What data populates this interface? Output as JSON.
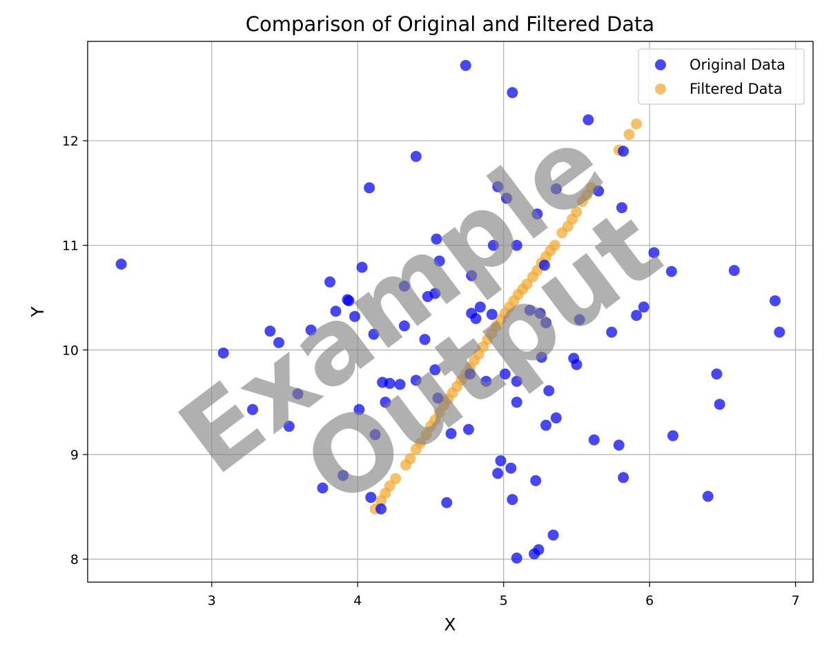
{
  "watermark": {
    "line1": "Example",
    "line2": "Output"
  },
  "chart_data": {
    "type": "scatter",
    "title": "Comparison of Original and Filtered Data",
    "xlabel": "X",
    "ylabel": "Y",
    "xlim": [
      2.15,
      7.12
    ],
    "ylim": [
      7.78,
      12.95
    ],
    "xticks": [
      3,
      4,
      5,
      6,
      7
    ],
    "yticks": [
      8,
      9,
      10,
      11,
      12
    ],
    "grid": true,
    "legend_position": "top-right",
    "series": [
      {
        "name": "Original Data",
        "color": "#0000ee",
        "points": [
          [
            2.38,
            10.82
          ],
          [
            3.08,
            9.97
          ],
          [
            3.28,
            9.43
          ],
          [
            3.4,
            10.18
          ],
          [
            3.46,
            10.07
          ],
          [
            3.53,
            9.27
          ],
          [
            3.59,
            9.58
          ],
          [
            3.68,
            10.19
          ],
          [
            3.76,
            8.68
          ],
          [
            3.81,
            10.65
          ],
          [
            3.85,
            10.37
          ],
          [
            3.9,
            8.8
          ],
          [
            3.93,
            10.48
          ],
          [
            3.94,
            10.47
          ],
          [
            3.98,
            10.32
          ],
          [
            4.01,
            9.43
          ],
          [
            4.03,
            10.79
          ],
          [
            4.08,
            11.55
          ],
          [
            4.09,
            8.59
          ],
          [
            4.11,
            10.15
          ],
          [
            4.12,
            9.19
          ],
          [
            4.16,
            8.48
          ],
          [
            4.17,
            9.69
          ],
          [
            4.19,
            9.5
          ],
          [
            4.22,
            9.68
          ],
          [
            4.29,
            9.67
          ],
          [
            4.32,
            10.61
          ],
          [
            4.32,
            10.23
          ],
          [
            4.4,
            9.71
          ],
          [
            4.4,
            11.85
          ],
          [
            4.46,
            10.1
          ],
          [
            4.48,
            10.51
          ],
          [
            4.53,
            10.54
          ],
          [
            4.53,
            9.81
          ],
          [
            4.54,
            11.06
          ],
          [
            4.55,
            9.54
          ],
          [
            4.56,
            10.85
          ],
          [
            4.61,
            8.54
          ],
          [
            4.64,
            9.2
          ],
          [
            4.74,
            12.72
          ],
          [
            4.76,
            9.24
          ],
          [
            4.77,
            9.77
          ],
          [
            4.78,
            10.71
          ],
          [
            4.78,
            10.35
          ],
          [
            4.81,
            10.3
          ],
          [
            4.84,
            10.41
          ],
          [
            4.88,
            9.7
          ],
          [
            4.92,
            10.34
          ],
          [
            4.93,
            11.0
          ],
          [
            4.96,
            11.56
          ],
          [
            4.96,
            8.82
          ],
          [
            4.98,
            8.94
          ],
          [
            5.01,
            9.77
          ],
          [
            5.02,
            11.45
          ],
          [
            5.05,
            8.87
          ],
          [
            5.06,
            12.46
          ],
          [
            5.06,
            8.57
          ],
          [
            5.09,
            9.7
          ],
          [
            5.09,
            11.0
          ],
          [
            5.09,
            9.5
          ],
          [
            5.09,
            8.01
          ],
          [
            5.18,
            10.38
          ],
          [
            5.21,
            8.05
          ],
          [
            5.22,
            8.75
          ],
          [
            5.23,
            11.3
          ],
          [
            5.24,
            8.09
          ],
          [
            5.25,
            10.35
          ],
          [
            5.26,
            9.93
          ],
          [
            5.28,
            10.81
          ],
          [
            5.29,
            9.28
          ],
          [
            5.29,
            10.26
          ],
          [
            5.31,
            9.61
          ],
          [
            5.34,
            8.23
          ],
          [
            5.36,
            11.54
          ],
          [
            5.36,
            9.35
          ],
          [
            5.48,
            9.92
          ],
          [
            5.5,
            9.86
          ],
          [
            5.52,
            10.29
          ],
          [
            5.58,
            12.2
          ],
          [
            5.62,
            9.14
          ],
          [
            5.65,
            11.52
          ],
          [
            5.74,
            10.17
          ],
          [
            5.79,
            9.09
          ],
          [
            5.81,
            11.36
          ],
          [
            5.82,
            8.78
          ],
          [
            5.82,
            11.9
          ],
          [
            5.91,
            10.33
          ],
          [
            5.96,
            10.41
          ],
          [
            6.03,
            10.93
          ],
          [
            6.15,
            10.75
          ],
          [
            6.16,
            9.18
          ],
          [
            6.4,
            8.6
          ],
          [
            6.46,
            9.77
          ],
          [
            6.48,
            9.48
          ],
          [
            6.58,
            10.76
          ],
          [
            6.86,
            10.47
          ],
          [
            6.89,
            10.17
          ]
        ]
      },
      {
        "name": "Filtered Data",
        "color": "#f0a830",
        "points": [
          [
            4.12,
            8.48
          ],
          [
            4.16,
            8.56
          ],
          [
            4.19,
            8.63
          ],
          [
            4.22,
            8.7
          ],
          [
            4.26,
            8.77
          ],
          [
            4.33,
            8.9
          ],
          [
            4.36,
            8.96
          ],
          [
            4.4,
            9.05
          ],
          [
            4.43,
            9.11
          ],
          [
            4.47,
            9.19
          ],
          [
            4.5,
            9.27
          ],
          [
            4.53,
            9.33
          ],
          [
            4.56,
            9.4
          ],
          [
            4.59,
            9.47
          ],
          [
            4.62,
            9.53
          ],
          [
            4.65,
            9.59
          ],
          [
            4.68,
            9.65
          ],
          [
            4.71,
            9.71
          ],
          [
            4.74,
            9.77
          ],
          [
            4.77,
            9.83
          ],
          [
            4.8,
            9.9
          ],
          [
            4.83,
            9.96
          ],
          [
            4.86,
            10.03
          ],
          [
            4.89,
            10.1
          ],
          [
            4.92,
            10.16
          ],
          [
            4.95,
            10.23
          ],
          [
            4.98,
            10.29
          ],
          [
            5.01,
            10.35
          ],
          [
            5.04,
            10.41
          ],
          [
            5.07,
            10.47
          ],
          [
            5.1,
            10.53
          ],
          [
            5.13,
            10.58
          ],
          [
            5.16,
            10.63
          ],
          [
            5.2,
            10.7
          ],
          [
            5.23,
            10.76
          ],
          [
            5.26,
            10.83
          ],
          [
            5.29,
            10.89
          ],
          [
            5.32,
            10.95
          ],
          [
            5.35,
            11.0
          ],
          [
            5.4,
            11.12
          ],
          [
            5.44,
            11.18
          ],
          [
            5.47,
            11.25
          ],
          [
            5.5,
            11.32
          ],
          [
            5.54,
            11.42
          ],
          [
            5.57,
            11.48
          ],
          [
            5.6,
            11.55
          ],
          [
            5.79,
            11.91
          ],
          [
            5.86,
            12.06
          ],
          [
            5.91,
            12.16
          ]
        ]
      }
    ]
  }
}
